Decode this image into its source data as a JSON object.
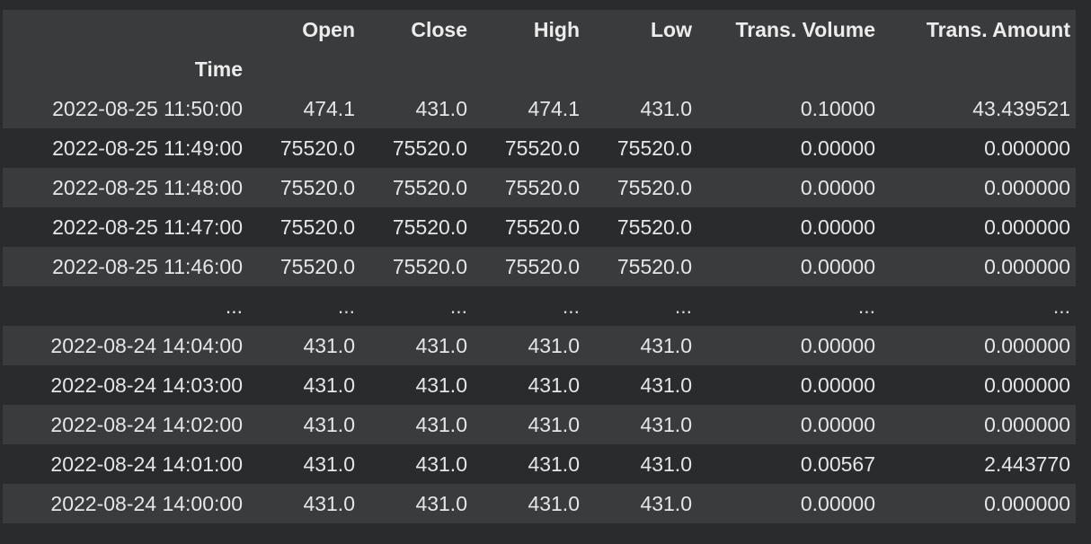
{
  "table": {
    "columns": [
      "Open",
      "Close",
      "High",
      "Low",
      "Trans. Volume",
      "Trans. Amount"
    ],
    "index_name": "Time",
    "rows": [
      {
        "time": "2022-08-25 11:50:00",
        "values": [
          "474.1",
          "431.0",
          "474.1",
          "431.0",
          "0.10000",
          "43.439521"
        ]
      },
      {
        "time": "2022-08-25 11:49:00",
        "values": [
          "75520.0",
          "75520.0",
          "75520.0",
          "75520.0",
          "0.00000",
          "0.000000"
        ]
      },
      {
        "time": "2022-08-25 11:48:00",
        "values": [
          "75520.0",
          "75520.0",
          "75520.0",
          "75520.0",
          "0.00000",
          "0.000000"
        ]
      },
      {
        "time": "2022-08-25 11:47:00",
        "values": [
          "75520.0",
          "75520.0",
          "75520.0",
          "75520.0",
          "0.00000",
          "0.000000"
        ]
      },
      {
        "time": "2022-08-25 11:46:00",
        "values": [
          "75520.0",
          "75520.0",
          "75520.0",
          "75520.0",
          "0.00000",
          "0.000000"
        ]
      },
      {
        "time": "...",
        "values": [
          "...",
          "...",
          "...",
          "...",
          "...",
          "..."
        ]
      },
      {
        "time": "2022-08-24 14:04:00",
        "values": [
          "431.0",
          "431.0",
          "431.0",
          "431.0",
          "0.00000",
          "0.000000"
        ]
      },
      {
        "time": "2022-08-24 14:03:00",
        "values": [
          "431.0",
          "431.0",
          "431.0",
          "431.0",
          "0.00000",
          "0.000000"
        ]
      },
      {
        "time": "2022-08-24 14:02:00",
        "values": [
          "431.0",
          "431.0",
          "431.0",
          "431.0",
          "0.00000",
          "0.000000"
        ]
      },
      {
        "time": "2022-08-24 14:01:00",
        "values": [
          "431.0",
          "431.0",
          "431.0",
          "431.0",
          "0.00567",
          "2.443770"
        ]
      },
      {
        "time": "2022-08-24 14:00:00",
        "values": [
          "431.0",
          "431.0",
          "431.0",
          "431.0",
          "0.00000",
          "0.000000"
        ]
      }
    ]
  },
  "colors": {
    "background": "#2a2b2d",
    "row_alt": "#3a3b3d",
    "text": "#e6e6e6"
  }
}
